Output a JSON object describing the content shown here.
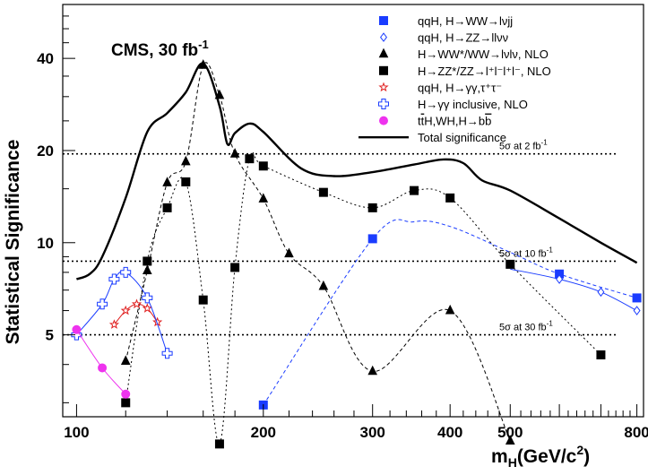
{
  "chart_data": {
    "type": "line",
    "banner": "CMS, 30 fb",
    "banner_exp": "-1",
    "ylabel": "Statistical Significance",
    "xlabel": "m_H(GeV/c^2)",
    "xlabel_main": "m",
    "xlabel_sub": "H",
    "xlabel_rest": "(GeV/c",
    "xlabel_sup": "2",
    "xlabel_close": ")",
    "x_scale": "log",
    "y_scale": "log",
    "xlim": [
      95,
      820
    ],
    "ylim": [
      2.7,
      60
    ],
    "x_ticks": [
      {
        "value": 100,
        "label": "100"
      },
      {
        "value": 200,
        "label": "200"
      },
      {
        "value": 300,
        "label": "300"
      },
      {
        "value": 400,
        "label": "400"
      },
      {
        "value": 500,
        "label": "500"
      },
      {
        "value": 800,
        "label": "800"
      }
    ],
    "y_ticks": [
      {
        "value": 5,
        "label": "5"
      },
      {
        "value": 10,
        "label": "10"
      },
      {
        "value": 20,
        "label": "20"
      },
      {
        "value": 40,
        "label": "40"
      }
    ],
    "reference_lines": [
      {
        "value": 19.5,
        "label": "5σ at 2 fb",
        "sup": "-1"
      },
      {
        "value": 8.7,
        "label": "5σ at 10 fb",
        "sup": "-1"
      },
      {
        "value": 5.0,
        "label": "5σ at 30 fb",
        "sup": "-1"
      }
    ],
    "legend_position": "top-right",
    "series": [
      {
        "name": "qqH, H→WW→lνjj",
        "marker": "square",
        "filled": true,
        "color": "#1a3cff",
        "line_style": "dashed",
        "points": [
          [
            200,
            2.95
          ],
          [
            300,
            10.3
          ],
          [
            350,
            11.7
          ],
          [
            400,
            11.3
          ],
          [
            500,
            9.3
          ],
          [
            600,
            7.9
          ],
          [
            800,
            6.6
          ]
        ],
        "marker_x": [
          200,
          300,
          600,
          800
        ]
      },
      {
        "name": "qqH, H→ZZ→llνν",
        "marker": "diamond",
        "filled": false,
        "color": "#1a3cff",
        "line_style": "solid",
        "points": [
          [
            500,
            8.2
          ],
          [
            600,
            7.6
          ],
          [
            700,
            6.9
          ],
          [
            800,
            6.0
          ]
        ],
        "marker_x": [
          600,
          700,
          800
        ]
      },
      {
        "name": "H→WW*/WW→lνlν, NLO",
        "marker": "triangle",
        "filled": true,
        "color": "#000000",
        "line_style": "dashed",
        "points": [
          [
            120,
            4.1
          ],
          [
            130,
            8.1
          ],
          [
            140,
            15.7
          ],
          [
            150,
            18.4
          ],
          [
            160,
            38.0
          ],
          [
            170,
            30.3
          ],
          [
            180,
            19.5
          ],
          [
            200,
            13.9
          ],
          [
            220,
            9.2
          ],
          [
            250,
            7.2
          ],
          [
            300,
            3.8
          ],
          [
            400,
            6.0
          ],
          [
            500,
            2.25
          ]
        ]
      },
      {
        "name": "H→ZZ*/ZZ→l⁺l⁻l⁺l⁻, NLO",
        "marker": "square",
        "filled": true,
        "color": "#000000",
        "line_style": "dotted",
        "points": [
          [
            120,
            3.0
          ],
          [
            130,
            8.7
          ],
          [
            140,
            13.0
          ],
          [
            150,
            15.8
          ],
          [
            160,
            6.5
          ],
          [
            170,
            2.2
          ],
          [
            180,
            8.3
          ],
          [
            190,
            18.8
          ],
          [
            200,
            17.8
          ],
          [
            250,
            14.6
          ],
          [
            300,
            13.0
          ],
          [
            350,
            14.8
          ],
          [
            400,
            14.0
          ],
          [
            500,
            8.5
          ],
          [
            700,
            4.3
          ]
        ]
      },
      {
        "name": "qqH, H→γγ,τ⁺τ⁻",
        "marker": "star",
        "filled": false,
        "color": "#e02020",
        "line_style": "solid",
        "points": [
          [
            115,
            5.4
          ],
          [
            120,
            6.0
          ],
          [
            125,
            6.3
          ],
          [
            130,
            6.1
          ],
          [
            135,
            5.5
          ]
        ]
      },
      {
        "name": "H→γγ inclusive, NLO",
        "marker": "cross",
        "filled": false,
        "color": "#1a3cff",
        "line_style": "solid",
        "points": [
          [
            100,
            5.0
          ],
          [
            110,
            6.3
          ],
          [
            115,
            7.6
          ],
          [
            120,
            8.0
          ],
          [
            130,
            6.6
          ],
          [
            140,
            4.35
          ]
        ]
      },
      {
        "name": "ttH,WH,H→bb",
        "legend_parts": [
          [
            "t",
            ""
          ],
          [
            "t",
            "over"
          ],
          [
            "H,WH,H→b",
            ""
          ],
          [
            "b",
            "over"
          ]
        ],
        "marker": "circle",
        "filled": true,
        "color": "#ee33ee",
        "line_style": "solid",
        "points": [
          [
            100,
            5.2
          ],
          [
            110,
            3.9
          ],
          [
            120,
            3.2
          ]
        ]
      },
      {
        "name": "Total significance",
        "marker": "none",
        "filled": false,
        "color": "#000000",
        "line_style": "solid-thick",
        "points": [
          [
            100,
            7.6
          ],
          [
            105,
            7.9
          ],
          [
            110,
            9.0
          ],
          [
            120,
            14.0
          ],
          [
            130,
            23.0
          ],
          [
            140,
            26.5
          ],
          [
            150,
            31.0
          ],
          [
            160,
            38.5
          ],
          [
            170,
            28.0
          ],
          [
            175,
            21.0
          ],
          [
            180,
            22.8
          ],
          [
            190,
            24.5
          ],
          [
            200,
            23.0
          ],
          [
            230,
            17.5
          ],
          [
            260,
            16.5
          ],
          [
            300,
            17.0
          ],
          [
            350,
            18.0
          ],
          [
            390,
            18.7
          ],
          [
            420,
            18.2
          ],
          [
            450,
            16.0
          ],
          [
            500,
            14.8
          ],
          [
            600,
            12.0
          ],
          [
            700,
            10.0
          ],
          [
            800,
            8.6
          ]
        ]
      }
    ]
  }
}
